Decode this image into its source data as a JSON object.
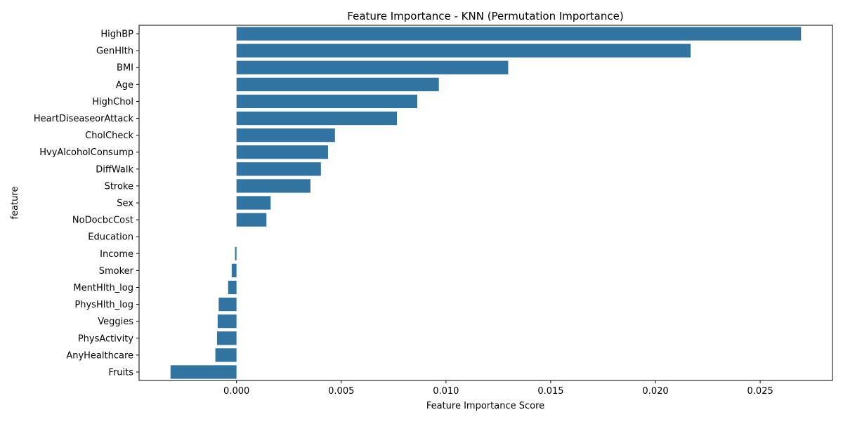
{
  "chart_data": {
    "type": "bar",
    "orientation": "horizontal",
    "title": "Feature Importance - KNN (Permutation Importance)",
    "xlabel": "Feature Importance Score",
    "ylabel": "feature",
    "categories": [
      "HighBP",
      "GenHlth",
      "BMI",
      "Age",
      "HighChol",
      "HeartDiseaseorAttack",
      "CholCheck",
      "HvyAlcoholConsump",
      "DiffWalk",
      "Stroke",
      "Sex",
      "NoDocbcCost",
      "Education",
      "Income",
      "Smoker",
      "MentHlth_log",
      "PhysHlth_log",
      "Veggies",
      "PhysActivity",
      "AnyHealthcare",
      "Fruits"
    ],
    "values": [
      0.02695,
      0.02168,
      0.01297,
      0.00966,
      0.00863,
      0.00766,
      0.0047,
      0.00437,
      0.00403,
      0.00353,
      0.00163,
      0.00143,
      0.0,
      -7e-05,
      -0.00023,
      -0.0004,
      -0.00085,
      -0.0009,
      -0.00093,
      -0.00101,
      -0.00315
    ],
    "xlim": [
      -0.00465,
      0.02845
    ],
    "xticks": [
      0.0,
      0.005,
      0.01,
      0.015,
      0.02,
      0.025
    ],
    "xtick_labels": [
      "0.000",
      "0.005",
      "0.010",
      "0.015",
      "0.020",
      "0.025"
    ],
    "bar_color": "#3274a1",
    "grid": false,
    "legend": "none"
  }
}
